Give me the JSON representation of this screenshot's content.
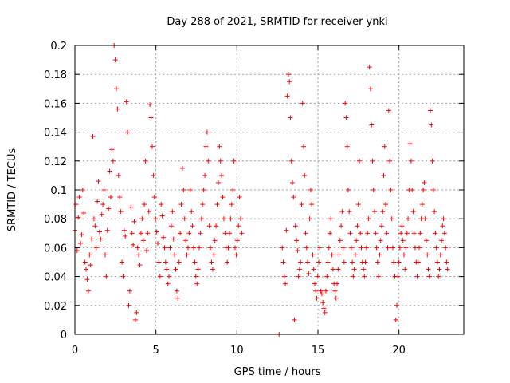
{
  "chart_data": {
    "type": "scatter",
    "title": "Day 288 of 2021, SRMTID for receiver ynki",
    "xlabel": "GPS time / hours",
    "ylabel": "SRMTID / TECUs",
    "xlim": [
      0,
      24
    ],
    "ylim": [
      0,
      0.2
    ],
    "xticks": [
      0,
      5,
      10,
      15,
      20
    ],
    "xtick_labels": [
      "0",
      "5",
      "10",
      "15",
      "20"
    ],
    "yticks": [
      0,
      0.02,
      0.04,
      0.06,
      0.08,
      0.1,
      0.12,
      0.14,
      0.16,
      0.18,
      0.2
    ],
    "ytick_labels": [
      "0",
      "0.02",
      "0.04",
      "0.06",
      "0.08",
      "0.1",
      "0.12",
      "0.14",
      "0.16",
      "0.18",
      "0.2"
    ],
    "grid": true,
    "marker": "+",
    "series_color": "#ff0000",
    "series": [
      {
        "name": "SRMTID",
        "segments": [
          {
            "x_start": 0.0,
            "x_end": 10.3,
            "samples": [
              0.072,
              0.09,
              0.058,
              0.081,
              0.095,
              0.063,
              0.069,
              0.1,
              0.084,
              0.05,
              0.045,
              0.038,
              0.03,
              0.055,
              0.048,
              0.066,
              0.137,
              0.08,
              0.075,
              0.06,
              0.092,
              0.106,
              0.071,
              0.066,
              0.083,
              0.09,
              0.1,
              0.055,
              0.04,
              0.072,
              0.087,
              0.113,
              0.095,
              0.128,
              0.12,
              0.2,
              0.19,
              0.17,
              0.156,
              0.11,
              0.095,
              0.085,
              0.05,
              0.04,
              0.072,
              0.068,
              0.161,
              0.14,
              0.02,
              0.03,
              0.088,
              0.07,
              0.062,
              0.078,
              0.01,
              0.015,
              0.06,
              0.055,
              0.048,
              0.07,
              0.08,
              0.065,
              0.09,
              0.12,
              0.058,
              0.07,
              0.085,
              0.159,
              0.15,
              0.13,
              0.11,
              0.095,
              0.08,
              0.071,
              0.063,
              0.05,
              0.04,
              0.09,
              0.082,
              0.067,
              0.06,
              0.05,
              0.045,
              0.035,
              0.04,
              0.06,
              0.075,
              0.085,
              0.066,
              0.055,
              0.045,
              0.03,
              0.025,
              0.05,
              0.07,
              0.09,
              0.115,
              0.1,
              0.08,
              0.065,
              0.055,
              0.06,
              0.07,
              0.1,
              0.085,
              0.075,
              0.06,
              0.05,
              0.04,
              0.035,
              0.045,
              0.06,
              0.07,
              0.08,
              0.09,
              0.1,
              0.11,
              0.13,
              0.14,
              0.12,
              0.075,
              0.06,
              0.05,
              0.045,
              0.055,
              0.065,
              0.075,
              0.09,
              0.105,
              0.13,
              0.12,
              0.11,
              0.095,
              0.08,
              0.07,
              0.06,
              0.05,
              0.06,
              0.07,
              0.08,
              0.09,
              0.1,
              0.12,
              0.06,
              0.055,
              0.065,
              0.075,
              0.095,
              0.08,
              0.07
            ]
          },
          {
            "x_start": 12.6,
            "x_end": 12.6,
            "samples": [
              0.0
            ]
          },
          {
            "x_start": 12.8,
            "x_end": 23.0,
            "samples": [
              0.06,
              0.05,
              0.04,
              0.035,
              0.072,
              0.165,
              0.18,
              0.175,
              0.15,
              0.12,
              0.105,
              0.095,
              0.01,
              0.075,
              0.065,
              0.058,
              0.04,
              0.045,
              0.05,
              0.09,
              0.16,
              0.13,
              0.11,
              0.07,
              0.06,
              0.05,
              0.042,
              0.08,
              0.1,
              0.09,
              0.055,
              0.045,
              0.035,
              0.03,
              0.025,
              0.04,
              0.05,
              0.06,
              0.03,
              0.028,
              0.022,
              0.018,
              0.015,
              0.03,
              0.04,
              0.05,
              0.06,
              0.07,
              0.08,
              0.055,
              0.045,
              0.035,
              0.03,
              0.025,
              0.035,
              0.045,
              0.055,
              0.065,
              0.075,
              0.085,
              0.06,
              0.05,
              0.16,
              0.15,
              0.13,
              0.1,
              0.085,
              0.07,
              0.06,
              0.05,
              0.04,
              0.045,
              0.055,
              0.065,
              0.075,
              0.09,
              0.12,
              0.07,
              0.06,
              0.05,
              0.045,
              0.04,
              0.05,
              0.06,
              0.07,
              0.08,
              0.185,
              0.17,
              0.145,
              0.12,
              0.1,
              0.085,
              0.07,
              0.06,
              0.05,
              0.04,
              0.055,
              0.065,
              0.075,
              0.085,
              0.11,
              0.13,
              0.09,
              0.07,
              0.06,
              0.155,
              0.12,
              0.1,
              0.08,
              0.06,
              0.05,
              0.04,
              0.01,
              0.02,
              0.04,
              0.05,
              0.06,
              0.07,
              0.075,
              0.065,
              0.055,
              0.045,
              0.06,
              0.07,
              0.08,
              0.1,
              0.132,
              0.12,
              0.1,
              0.085,
              0.07,
              0.06,
              0.05,
              0.04,
              0.05,
              0.06,
              0.07,
              0.08,
              0.09,
              0.1,
              0.105,
              0.08,
              0.065,
              0.055,
              0.045,
              0.04,
              0.155,
              0.145,
              0.12,
              0.1,
              0.085,
              0.07,
              0.06,
              0.05,
              0.04,
              0.045,
              0.055,
              0.065,
              0.075,
              0.08,
              0.07,
              0.06,
              0.05,
              0.045
            ]
          }
        ]
      }
    ]
  }
}
